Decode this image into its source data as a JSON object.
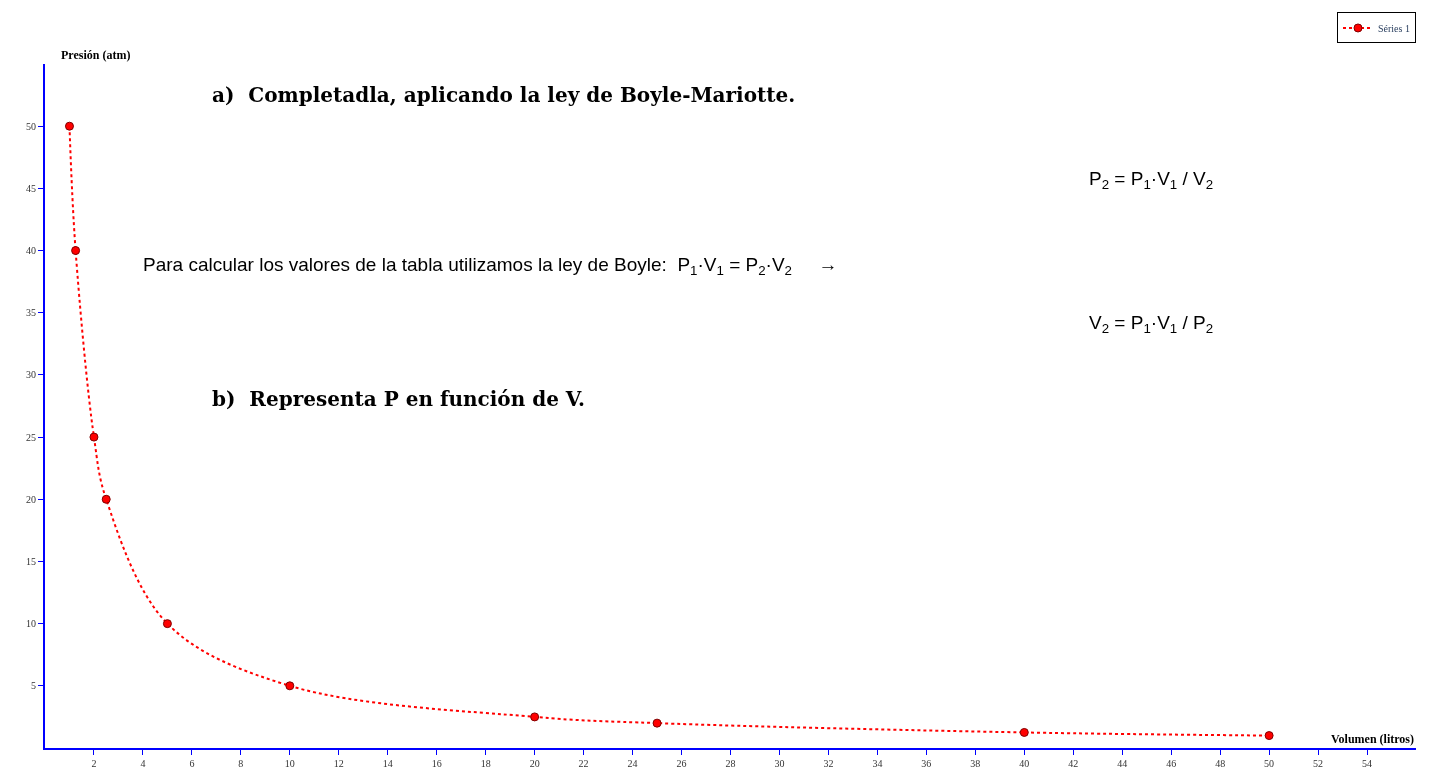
{
  "chart_data": {
    "type": "line",
    "xlabel": "Volumen (litros)",
    "ylabel": "Presión (atm)",
    "x": [
      1,
      1.25,
      2,
      2.5,
      5,
      10,
      20,
      25,
      40,
      50
    ],
    "series": [
      {
        "name": "Séries 1",
        "color": "#ff0000",
        "values": [
          50,
          40,
          25,
          20,
          10,
          5,
          2.5,
          2,
          1.25,
          1
        ]
      }
    ],
    "xlim": [
      0,
      56
    ],
    "ylim": [
      0,
      55
    ],
    "xticks": [
      2,
      4,
      6,
      8,
      10,
      12,
      14,
      16,
      18,
      20,
      22,
      24,
      26,
      28,
      30,
      32,
      34,
      36,
      38,
      40,
      42,
      44,
      46,
      48,
      50,
      52,
      54
    ],
    "yticks": [
      5,
      10,
      15,
      20,
      25,
      30,
      35,
      40,
      45,
      50
    ],
    "legend": "top right",
    "marker": "circle",
    "line_style": "dotted",
    "annotations": [
      "a)  Completadla, aplicando la ley de Boyle-Mariotte.",
      "Para calcular los valores de la tabla utilizamos la ley de Boyle:  P$_{1}$·V$_{1}$ = P$_{2}$·V$_{2}$     →",
      "P$_{2}$ = P$_{1}$·V$_{1}$ / V$_{2}$",
      "V$_{2}$ = P$_{1}$·V$_{1}$ / P$_{2}$",
      "b)  Representa P en función de V."
    ]
  }
}
